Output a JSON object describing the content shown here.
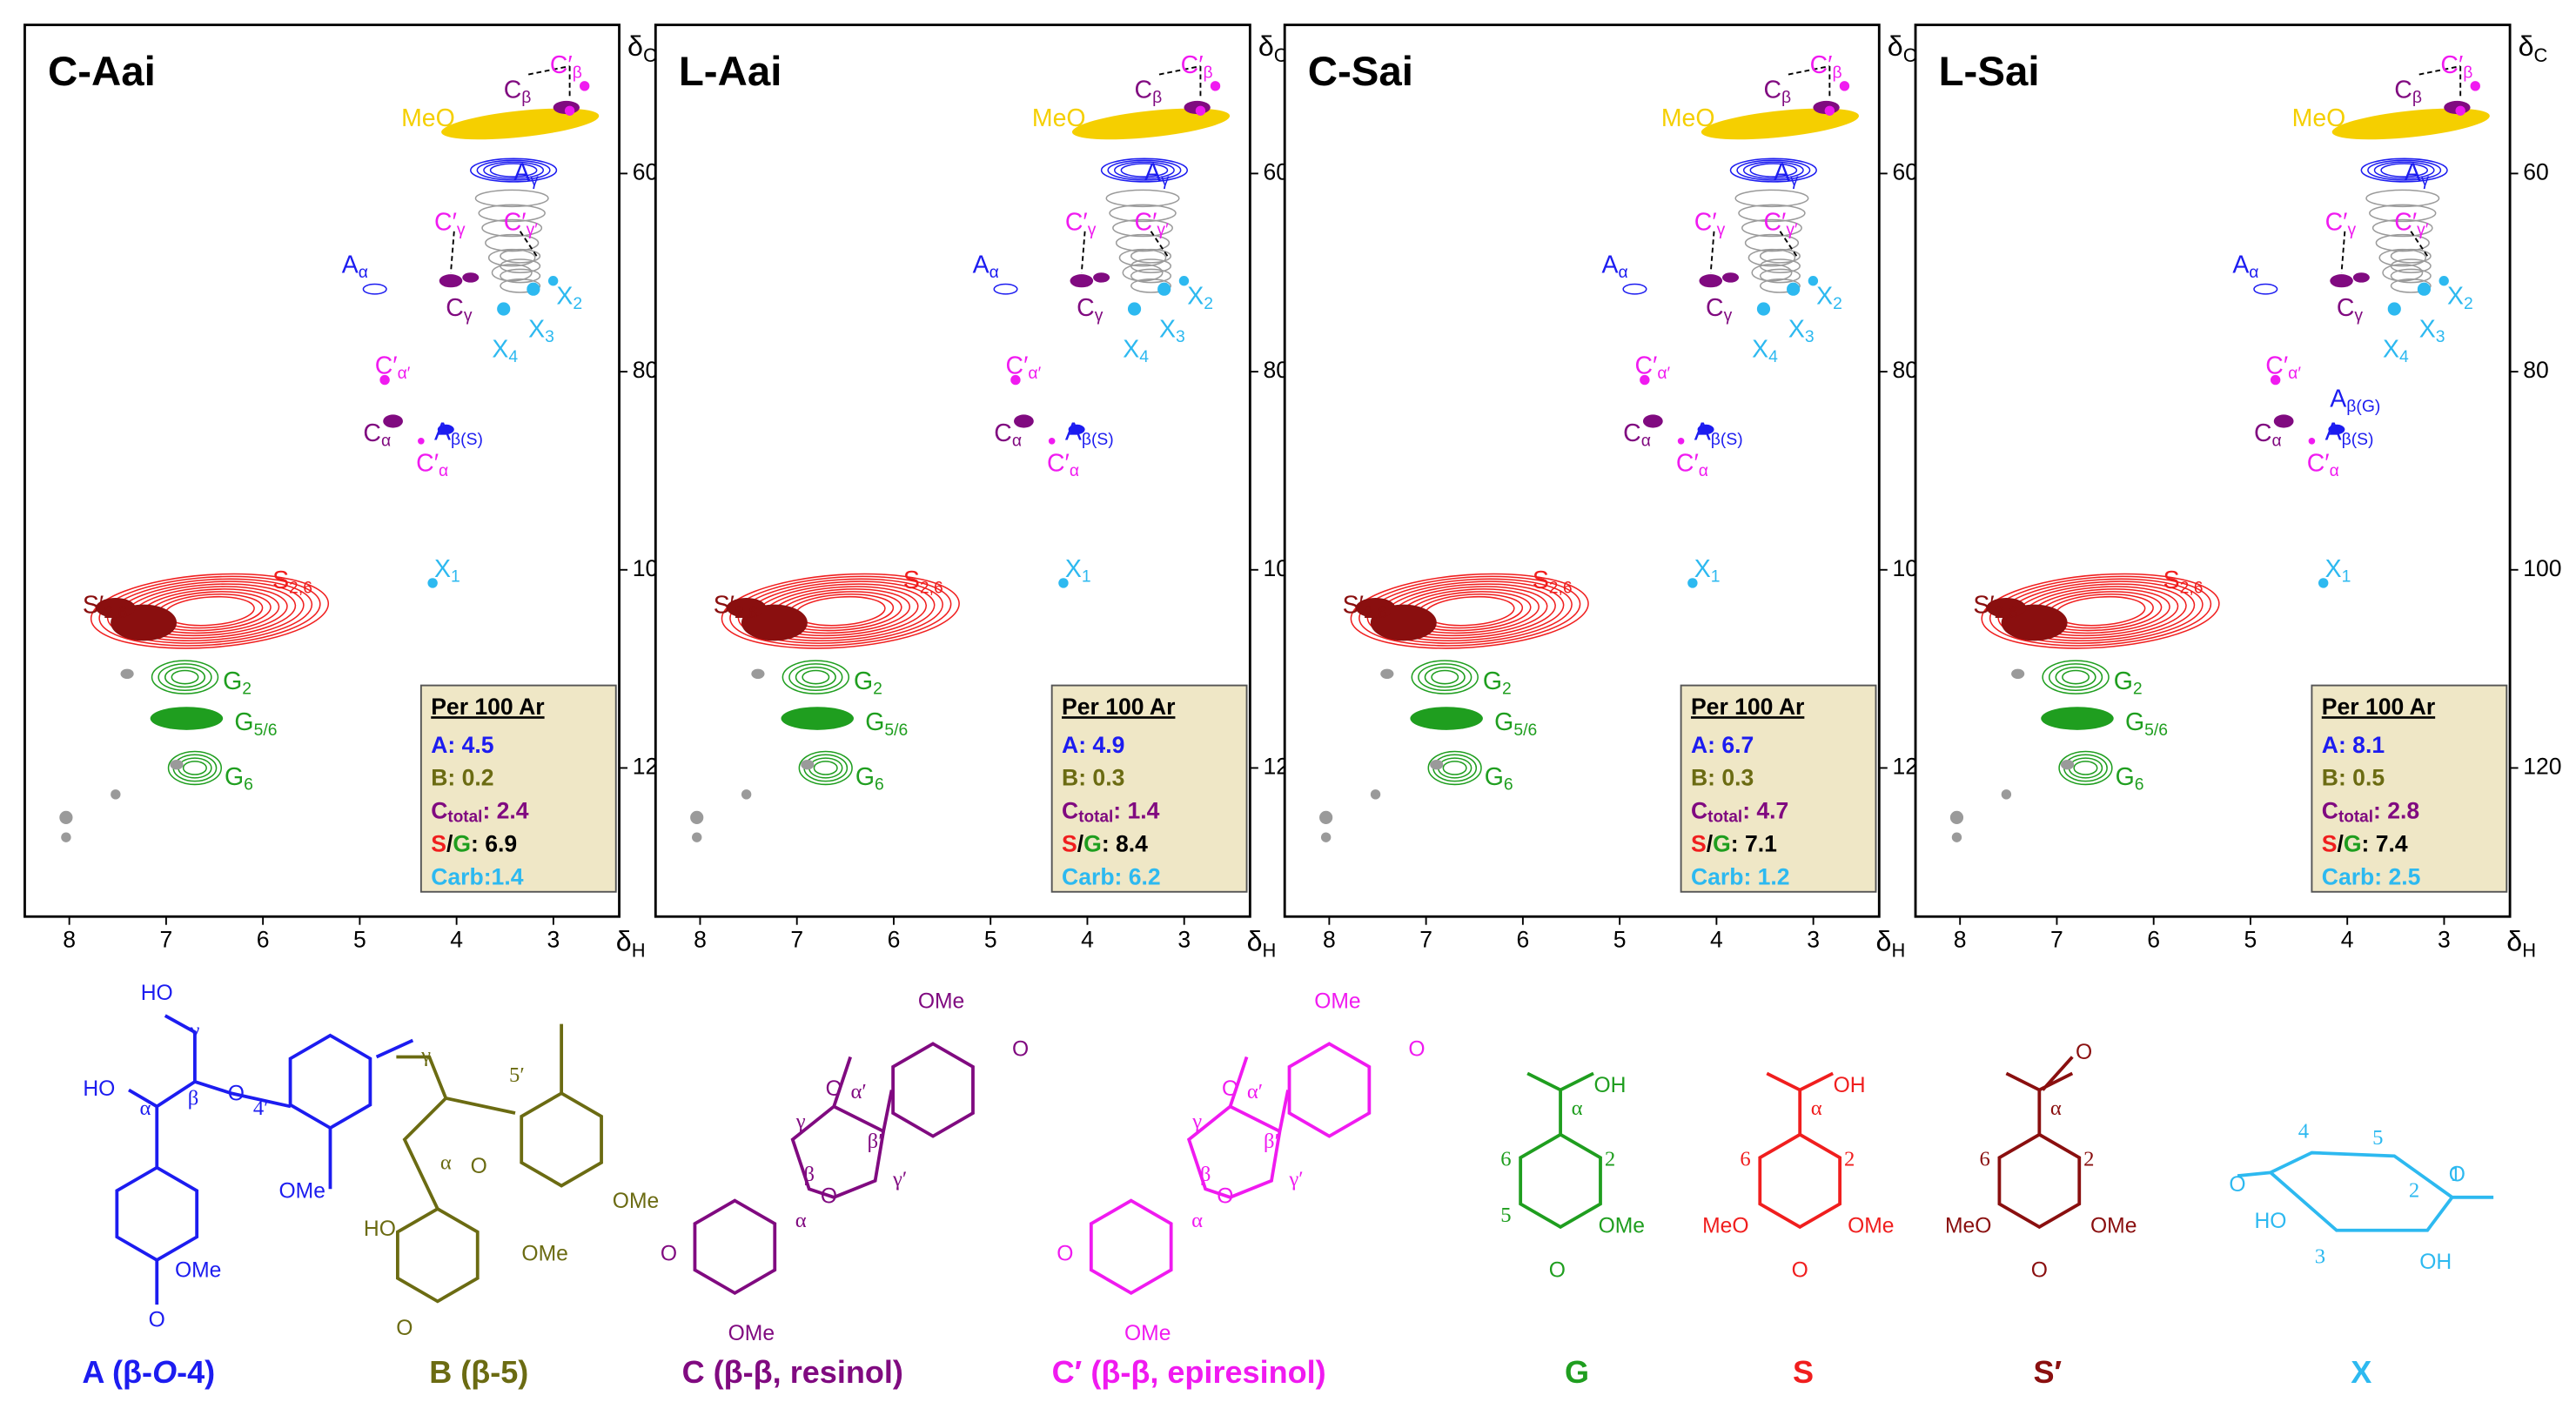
{
  "axes": {
    "x_label": [
      "δ",
      "H"
    ],
    "y_label": [
      "δ",
      "C"
    ],
    "xlim": [
      8.46,
      2.32
    ],
    "ylim": [
      45,
      135
    ],
    "xticks": [
      8,
      7,
      6,
      5,
      4,
      3
    ],
    "yticks": [
      60,
      80,
      100,
      120
    ]
  },
  "panels": [
    {
      "title": "C-Aai",
      "peaks": [
        [
          "MeO"
        ],
        [
          "A",
          "γ"
        ],
        [
          "A",
          "α"
        ],
        [
          "C",
          "γ"
        ],
        [
          "C′",
          "γ"
        ],
        [
          "C′",
          "γ′"
        ],
        [
          "C",
          "β"
        ],
        [
          "C′",
          "β"
        ],
        [
          "X",
          "2"
        ],
        [
          "X",
          "3"
        ],
        [
          "X",
          "4"
        ],
        [
          "C",
          "α"
        ],
        [
          "C′",
          "α′"
        ],
        [
          "C′",
          "α"
        ],
        [
          "A",
          "β(S)"
        ],
        [
          "X",
          "1"
        ],
        [
          "S′",
          "2,6"
        ],
        [
          "S",
          "2,6"
        ],
        [
          "G",
          "2"
        ],
        [
          "G",
          "5/6"
        ],
        [
          "G",
          "6"
        ]
      ],
      "box": {
        "header": "Per 100 Ar",
        "lines": [
          [
            "A: 4.5"
          ],
          [
            "B: 0.2"
          ],
          [
            "C",
            "total",
            ": 2.4"
          ],
          [
            "S",
            "/",
            "G",
            ": 6.9"
          ],
          [
            "Carb:1.4"
          ]
        ]
      }
    },
    {
      "title": "L-Aai",
      "peaks": [
        [
          "MeO"
        ],
        [
          "A",
          "γ"
        ],
        [
          "A",
          "α"
        ],
        [
          "C",
          "γ"
        ],
        [
          "C′",
          "γ"
        ],
        [
          "C′",
          "γ′"
        ],
        [
          "C",
          "β"
        ],
        [
          "C′",
          "β"
        ],
        [
          "X",
          "2"
        ],
        [
          "X",
          "3"
        ],
        [
          "X",
          "4"
        ],
        [
          "C",
          "α"
        ],
        [
          "C′",
          "α′"
        ],
        [
          "C′",
          "α"
        ],
        [
          "A",
          "β(S)"
        ],
        [
          "X",
          "1"
        ],
        [
          "S′",
          "2,6"
        ],
        [
          "S",
          "2,6"
        ],
        [
          "G",
          "2"
        ],
        [
          "G",
          "5/6"
        ],
        [
          "G",
          "6"
        ]
      ],
      "box": {
        "header": "Per 100 Ar",
        "lines": [
          [
            "A: 4.9"
          ],
          [
            "B: 0.3"
          ],
          [
            "C",
            "total",
            ": 1.4"
          ],
          [
            "S",
            "/",
            "G",
            ": 8.4"
          ],
          [
            "Carb: 6.2"
          ]
        ]
      }
    },
    {
      "title": "C-Sai",
      "peaks": [
        [
          "MeO"
        ],
        [
          "A",
          "γ"
        ],
        [
          "A",
          "α"
        ],
        [
          "C",
          "γ"
        ],
        [
          "C′",
          "γ"
        ],
        [
          "C′",
          "γ′"
        ],
        [
          "C",
          "β"
        ],
        [
          "C′",
          "β"
        ],
        [
          "X",
          "2"
        ],
        [
          "X",
          "3"
        ],
        [
          "X",
          "4"
        ],
        [
          "C",
          "α"
        ],
        [
          "C′",
          "α′"
        ],
        [
          "C′",
          "α"
        ],
        [
          "A",
          "β(S)"
        ],
        [
          "X",
          "1"
        ],
        [
          "S′",
          "2,6"
        ],
        [
          "S",
          "2,6"
        ],
        [
          "G",
          "2"
        ],
        [
          "G",
          "5/6"
        ],
        [
          "G",
          "6"
        ]
      ],
      "box": {
        "header": "Per 100 Ar",
        "lines": [
          [
            "A: 6.7"
          ],
          [
            "B: 0.3"
          ],
          [
            "C",
            "total",
            ": 4.7"
          ],
          [
            "S",
            "/",
            "G",
            ": 7.1"
          ],
          [
            "Carb: 1.2"
          ]
        ]
      }
    },
    {
      "title": "L-Sai",
      "peaks": [
        [
          "MeO"
        ],
        [
          "A",
          "γ"
        ],
        [
          "A",
          "α"
        ],
        [
          "C",
          "γ"
        ],
        [
          "C′",
          "γ"
        ],
        [
          "C′",
          "γ′"
        ],
        [
          "C",
          "β"
        ],
        [
          "C′",
          "β"
        ],
        [
          "X",
          "2"
        ],
        [
          "X",
          "3"
        ],
        [
          "X",
          "4"
        ],
        [
          "C",
          "α"
        ],
        [
          "C′",
          "α′"
        ],
        [
          "C′",
          "α"
        ],
        [
          "A",
          "β(S)"
        ],
        [
          "X",
          "1"
        ],
        [
          "S′",
          "2,6"
        ],
        [
          "S",
          "2,6"
        ],
        [
          "G",
          "2"
        ],
        [
          "G",
          "5/6"
        ],
        [
          "G",
          "6"
        ],
        [
          "A",
          "β(G)"
        ]
      ],
      "box": {
        "header": "Per 100 Ar",
        "lines": [
          [
            "A: 8.1"
          ],
          [
            "B: 0.5"
          ],
          [
            "C",
            "total",
            ": 2.8"
          ],
          [
            "S",
            "/",
            "G",
            ": 7.4"
          ],
          [
            "Carb: 2.5"
          ]
        ]
      }
    }
  ],
  "structures": [
    {
      "caption": [
        "A (β-",
        "O",
        "-4)"
      ],
      "labels": [
        "HO",
        "γ",
        "HO",
        "α",
        "β",
        "O",
        "4′",
        "OMe",
        "OMe",
        "O"
      ]
    },
    {
      "caption": [
        "B (β-5)"
      ],
      "labels": [
        "5′",
        "OMe",
        "HO",
        "γ",
        "α",
        "O",
        "OMe",
        "O"
      ]
    },
    {
      "caption": [
        "C (β-β, resinol)"
      ],
      "labels": [
        "OMe",
        "O",
        "α′",
        "O",
        "γ",
        "β′",
        "β",
        "γ′",
        "α",
        "O",
        "O",
        "OMe"
      ]
    },
    {
      "caption": [
        "C′ (β-β, epiresinol)"
      ],
      "labels": [
        "OMe",
        "O",
        "α′",
        "O",
        "γ",
        "β′",
        "β",
        "γ′",
        "α",
        "O",
        "O",
        "OMe"
      ]
    },
    {
      "caption": [
        "G"
      ],
      "labels": [
        "OH",
        "α",
        "6",
        "2",
        "5",
        "OMe",
        "O"
      ]
    },
    {
      "caption": [
        "S"
      ],
      "labels": [
        "OH",
        "α",
        "6",
        "2",
        "MeO",
        "OMe",
        "O"
      ]
    },
    {
      "caption": [
        "S′"
      ],
      "labels": [
        "O",
        "α",
        "6",
        "2",
        "MeO",
        "OMe",
        "O"
      ]
    },
    {
      "caption": [
        "X"
      ],
      "labels": [
        "O",
        "4",
        "5",
        "2",
        "1",
        "O",
        "HO",
        "3",
        "OH"
      ]
    }
  ]
}
